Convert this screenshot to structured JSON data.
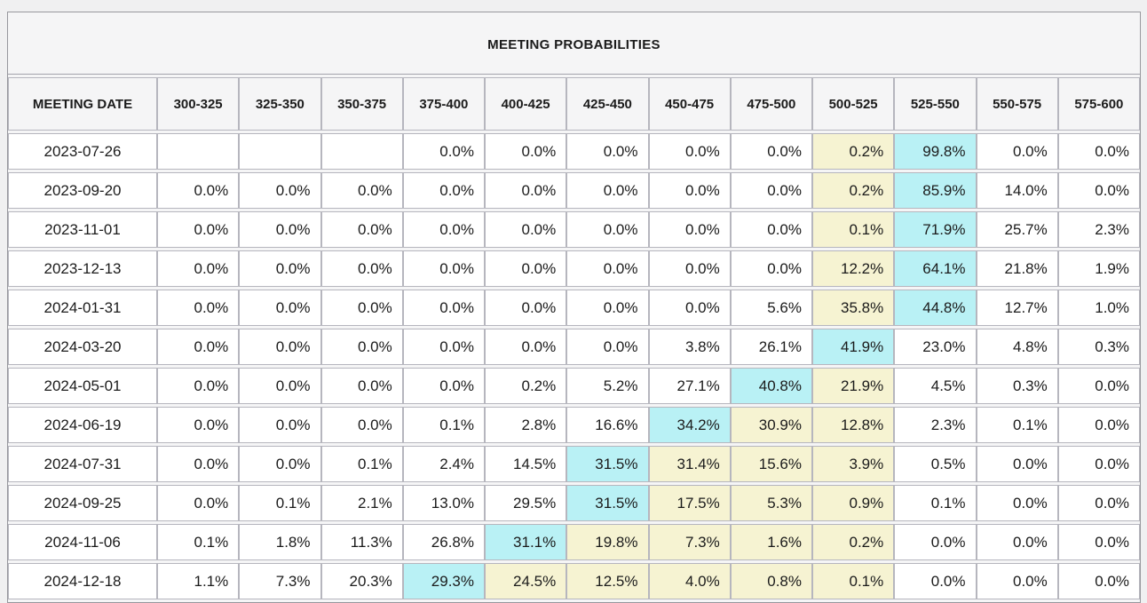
{
  "table": {
    "title": "MEETING PROBABILITIES",
    "date_column_header": "MEETING DATE",
    "rate_range_headers": [
      "300-325",
      "325-350",
      "350-375",
      "375-400",
      "400-425",
      "425-450",
      "450-475",
      "475-500",
      "500-525",
      "525-550",
      "550-575",
      "575-600"
    ],
    "rows": [
      {
        "date": "2023-07-26",
        "values": [
          "",
          "",
          "",
          "0.0%",
          "0.0%",
          "0.0%",
          "0.0%",
          "0.0%",
          "0.2%",
          "99.8%",
          "0.0%",
          "0.0%"
        ],
        "highlights": [
          "",
          "",
          "",
          "",
          "",
          "",
          "",
          "",
          "yellow",
          "cyan",
          "",
          ""
        ]
      },
      {
        "date": "2023-09-20",
        "values": [
          "0.0%",
          "0.0%",
          "0.0%",
          "0.0%",
          "0.0%",
          "0.0%",
          "0.0%",
          "0.0%",
          "0.2%",
          "85.9%",
          "14.0%",
          "0.0%"
        ],
        "highlights": [
          "",
          "",
          "",
          "",
          "",
          "",
          "",
          "",
          "yellow",
          "cyan",
          "",
          ""
        ]
      },
      {
        "date": "2023-11-01",
        "values": [
          "0.0%",
          "0.0%",
          "0.0%",
          "0.0%",
          "0.0%",
          "0.0%",
          "0.0%",
          "0.0%",
          "0.1%",
          "71.9%",
          "25.7%",
          "2.3%"
        ],
        "highlights": [
          "",
          "",
          "",
          "",
          "",
          "",
          "",
          "",
          "yellow",
          "cyan",
          "",
          ""
        ]
      },
      {
        "date": "2023-12-13",
        "values": [
          "0.0%",
          "0.0%",
          "0.0%",
          "0.0%",
          "0.0%",
          "0.0%",
          "0.0%",
          "0.0%",
          "12.2%",
          "64.1%",
          "21.8%",
          "1.9%"
        ],
        "highlights": [
          "",
          "",
          "",
          "",
          "",
          "",
          "",
          "",
          "yellow",
          "cyan",
          "",
          ""
        ]
      },
      {
        "date": "2024-01-31",
        "values": [
          "0.0%",
          "0.0%",
          "0.0%",
          "0.0%",
          "0.0%",
          "0.0%",
          "0.0%",
          "5.6%",
          "35.8%",
          "44.8%",
          "12.7%",
          "1.0%"
        ],
        "highlights": [
          "",
          "",
          "",
          "",
          "",
          "",
          "",
          "",
          "yellow",
          "cyan",
          "",
          ""
        ]
      },
      {
        "date": "2024-03-20",
        "values": [
          "0.0%",
          "0.0%",
          "0.0%",
          "0.0%",
          "0.0%",
          "0.0%",
          "3.8%",
          "26.1%",
          "41.9%",
          "23.0%",
          "4.8%",
          "0.3%"
        ],
        "highlights": [
          "",
          "",
          "",
          "",
          "",
          "",
          "",
          "",
          "cyan",
          "",
          "",
          ""
        ]
      },
      {
        "date": "2024-05-01",
        "values": [
          "0.0%",
          "0.0%",
          "0.0%",
          "0.0%",
          "0.2%",
          "5.2%",
          "27.1%",
          "40.8%",
          "21.9%",
          "4.5%",
          "0.3%",
          "0.0%"
        ],
        "highlights": [
          "",
          "",
          "",
          "",
          "",
          "",
          "",
          "cyan",
          "yellow",
          "",
          "",
          ""
        ]
      },
      {
        "date": "2024-06-19",
        "values": [
          "0.0%",
          "0.0%",
          "0.0%",
          "0.1%",
          "2.8%",
          "16.6%",
          "34.2%",
          "30.9%",
          "12.8%",
          "2.3%",
          "0.1%",
          "0.0%"
        ],
        "highlights": [
          "",
          "",
          "",
          "",
          "",
          "",
          "cyan",
          "yellow",
          "yellow",
          "",
          "",
          ""
        ]
      },
      {
        "date": "2024-07-31",
        "values": [
          "0.0%",
          "0.0%",
          "0.1%",
          "2.4%",
          "14.5%",
          "31.5%",
          "31.4%",
          "15.6%",
          "3.9%",
          "0.5%",
          "0.0%",
          "0.0%"
        ],
        "highlights": [
          "",
          "",
          "",
          "",
          "",
          "cyan",
          "yellow",
          "yellow",
          "yellow",
          "",
          "",
          ""
        ]
      },
      {
        "date": "2024-09-25",
        "values": [
          "0.0%",
          "0.1%",
          "2.1%",
          "13.0%",
          "29.5%",
          "31.5%",
          "17.5%",
          "5.3%",
          "0.9%",
          "0.1%",
          "0.0%",
          "0.0%"
        ],
        "highlights": [
          "",
          "",
          "",
          "",
          "",
          "cyan",
          "yellow",
          "yellow",
          "yellow",
          "",
          "",
          ""
        ]
      },
      {
        "date": "2024-11-06",
        "values": [
          "0.1%",
          "1.8%",
          "11.3%",
          "26.8%",
          "31.1%",
          "19.8%",
          "7.3%",
          "1.6%",
          "0.2%",
          "0.0%",
          "0.0%",
          "0.0%"
        ],
        "highlights": [
          "",
          "",
          "",
          "",
          "cyan",
          "yellow",
          "yellow",
          "yellow",
          "yellow",
          "",
          "",
          ""
        ]
      },
      {
        "date": "2024-12-18",
        "values": [
          "1.1%",
          "7.3%",
          "20.3%",
          "29.3%",
          "24.5%",
          "12.5%",
          "4.0%",
          "0.8%",
          "0.1%",
          "0.0%",
          "0.0%",
          "0.0%"
        ],
        "highlights": [
          "",
          "",
          "",
          "cyan",
          "yellow",
          "yellow",
          "yellow",
          "yellow",
          "yellow",
          "",
          "",
          ""
        ]
      }
    ]
  },
  "colors": {
    "highlight_cyan": "#b9f1f5",
    "highlight_yellow": "#f6f3d2",
    "page_background": "#f0f0f1",
    "panel_background": "#f5f5f6",
    "cell_border": "#b6b6be",
    "text": "#1b1b1b"
  }
}
